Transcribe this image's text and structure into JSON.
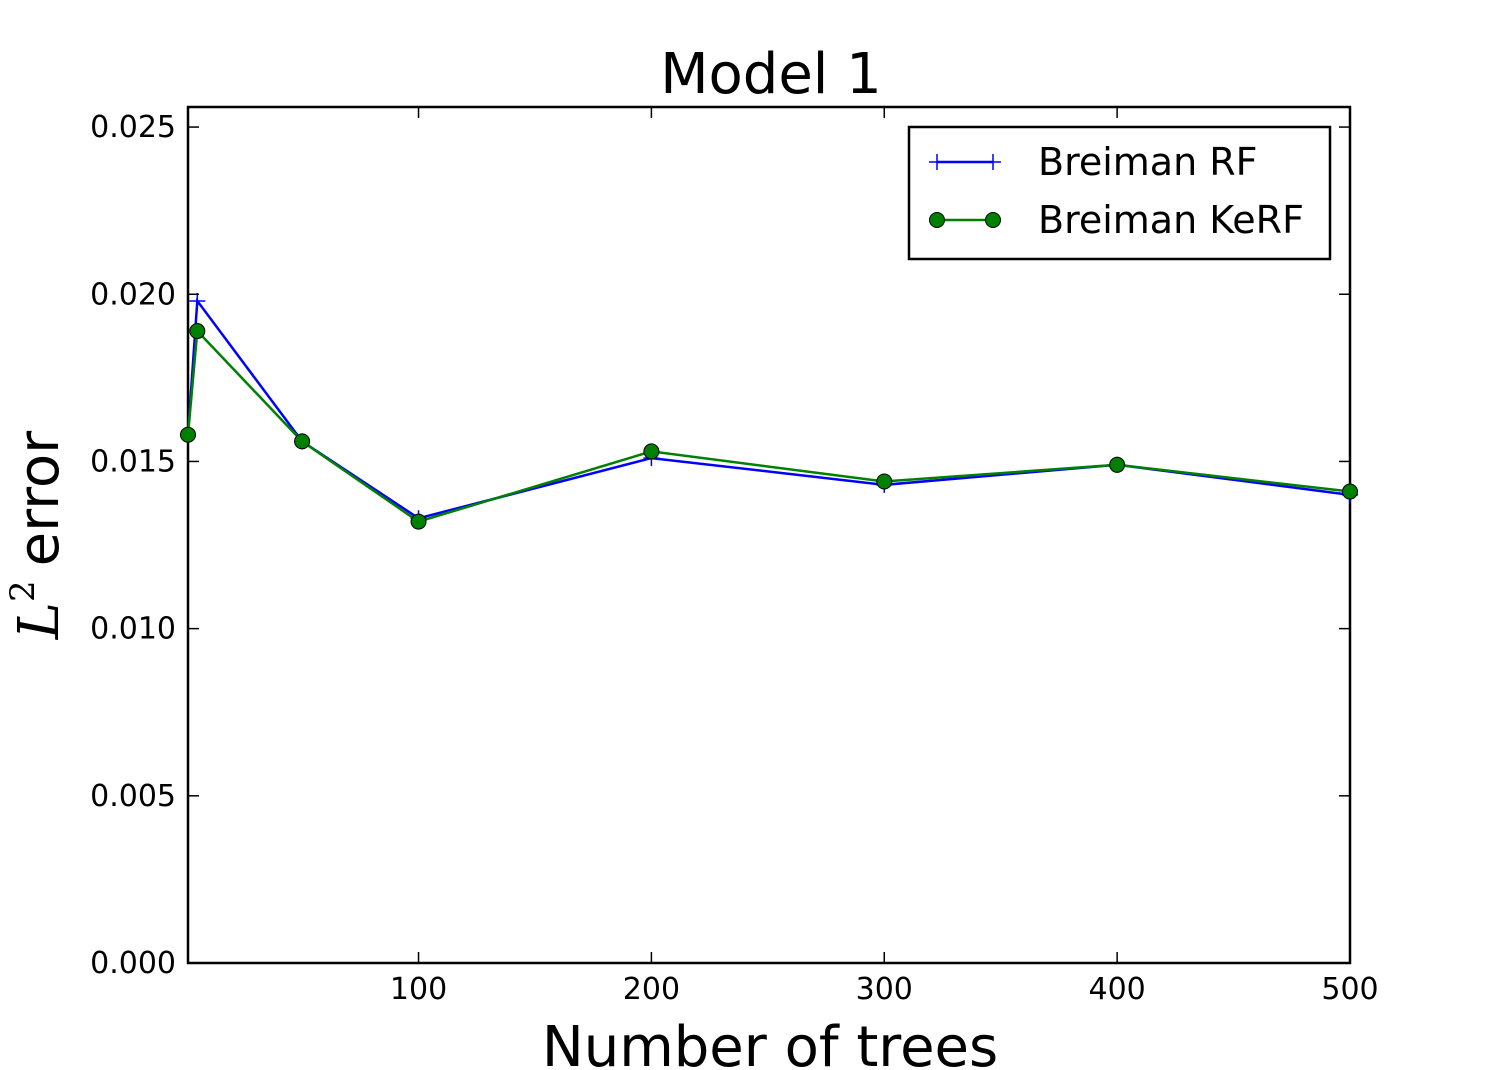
{
  "chart_data": {
    "type": "line",
    "title": "Model 1",
    "xlabel": "Number of trees",
    "ylabel": {
      "math_base": "L",
      "math_sup": "2",
      "text": "error"
    },
    "xlim": [
      1,
      500
    ],
    "ylim": [
      0.0,
      0.0256
    ],
    "xticks": [
      {
        "value": 100,
        "label": "100"
      },
      {
        "value": 200,
        "label": "200"
      },
      {
        "value": 300,
        "label": "300"
      },
      {
        "value": 400,
        "label": "400"
      },
      {
        "value": 500,
        "label": "500"
      }
    ],
    "yticks": [
      {
        "value": 0.0,
        "label": "0.000"
      },
      {
        "value": 0.005,
        "label": "0.005"
      },
      {
        "value": 0.01,
        "label": "0.010"
      },
      {
        "value": 0.015,
        "label": "0.015"
      },
      {
        "value": 0.02,
        "label": "0.020"
      },
      {
        "value": 0.025,
        "label": "0.025"
      }
    ],
    "grid": false,
    "legend_position": "top-right",
    "series": [
      {
        "name": "Breiman RF",
        "color": "#0000ff",
        "marker": "plus",
        "x": [
          1,
          5,
          50,
          100,
          200,
          300,
          400,
          500
        ],
        "y": [
          0.0158,
          0.0198,
          0.0156,
          0.0133,
          0.0151,
          0.0143,
          0.0149,
          0.014
        ]
      },
      {
        "name": "Breiman KeRF",
        "color": "#008000",
        "marker": "circle",
        "x": [
          1,
          5,
          50,
          100,
          200,
          300,
          400,
          500
        ],
        "y": [
          0.0158,
          0.0189,
          0.0156,
          0.0132,
          0.0153,
          0.0144,
          0.0149,
          0.0141
        ]
      }
    ]
  }
}
